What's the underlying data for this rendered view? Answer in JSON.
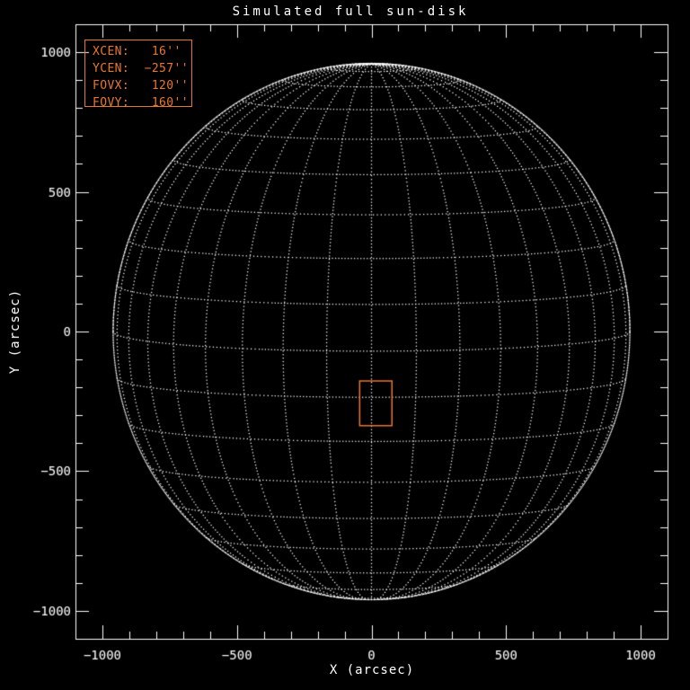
{
  "window": {
    "background": "#000000"
  },
  "chart_data": {
    "type": "scatter",
    "title": "Simulated full sun-disk",
    "xlabel": "X (arcsec)",
    "ylabel": "Y (arcsec)",
    "xlim": [
      -1100,
      1100
    ],
    "ylim": [
      -1100,
      1100
    ],
    "xticks": [
      -1000,
      -500,
      0,
      500,
      1000
    ],
    "yticks": [
      -1000,
      -500,
      0,
      500,
      1000
    ],
    "minor_tick_step": 100,
    "grid_on": true,
    "legend_position": "top-left",
    "solar_grid": {
      "projection": "orthographic",
      "solar_radius_arcsec": 960,
      "b0_deg": 4.2,
      "lat_spacing_deg": 10,
      "lon_spacing_deg": 10,
      "lat_min_deg": -80,
      "lat_max_deg": 80,
      "line_style": "dotted"
    },
    "limb": {
      "radius_arcsec": 960,
      "style": "dense-dotted"
    },
    "fov_box": {
      "xcen_arcsec": 16,
      "ycen_arcsec": -257,
      "fovx_arcsec": 120,
      "fovy_arcsec": 160
    },
    "legend": {
      "lines": [
        "XCEN:   16''",
        "YCEN:  −257''",
        "FOVX:   120''",
        "FOVY:   160''"
      ],
      "values": {
        "xcen": "16''",
        "ycen": "−257''",
        "fovx": "120''",
        "fovy": "160''"
      }
    },
    "colors": {
      "background": "#000000",
      "axes": "#FFFFFF",
      "grid_dots": "#FFFFFF",
      "accent_orange": "#E8772E"
    }
  }
}
